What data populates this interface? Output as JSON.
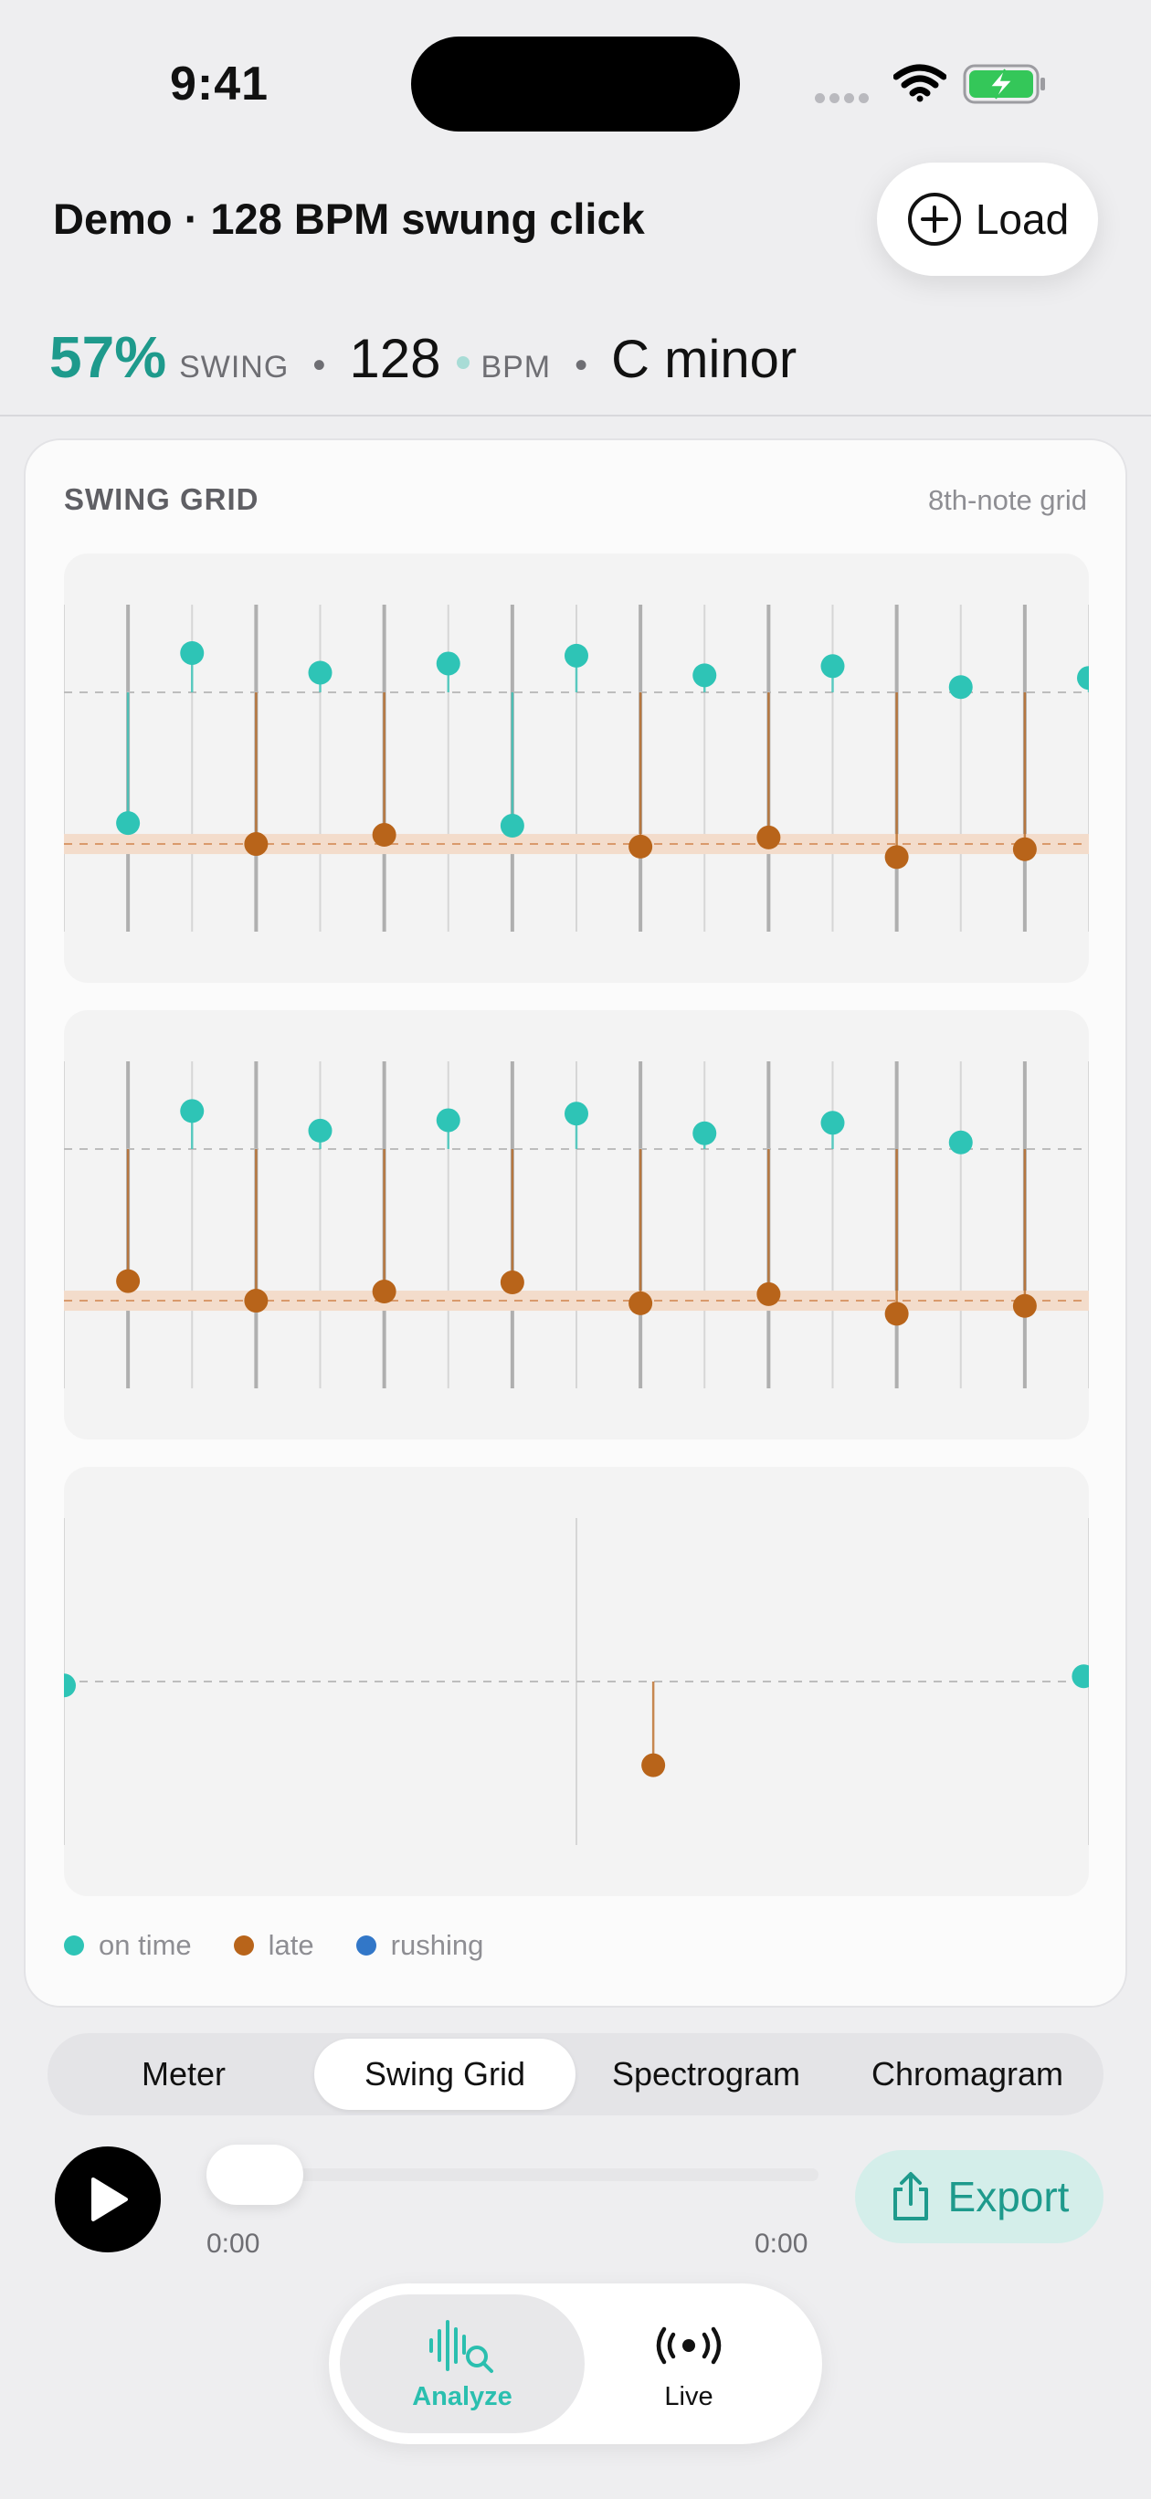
{
  "status_bar": {
    "time": "9:41",
    "icons": [
      "signal-dots-icon",
      "wifi-icon",
      "battery-charging-icon"
    ]
  },
  "header": {
    "title": "Demo · 128 BPM swung click",
    "load_label": "Load",
    "load_icon": "plus-circle-icon"
  },
  "stats": {
    "swing_value": "57%",
    "swing_label": "SWING",
    "separator": "•",
    "bpm_value": "128",
    "bpm_label": "BPM",
    "key": "C minor"
  },
  "card": {
    "title": "SWING GRID",
    "subtitle": "8th-note grid",
    "legend": [
      {
        "label": "on time",
        "color": "#2EC4B6"
      },
      {
        "label": "late",
        "color": "#B8641A"
      },
      {
        "label": "rushing",
        "color": "#3277C8"
      }
    ]
  },
  "colors": {
    "accent": "#1E9A8C",
    "on_time": "#2EC4B6",
    "late": "#B8641A",
    "rushing": "#3277C8"
  },
  "chart_data": [
    {
      "type": "scatter",
      "title": "",
      "grid": true,
      "x_range": [
        0,
        16
      ],
      "y_range": [
        -1.25,
        1.25
      ],
      "reference_lines": {
        "on_beat": 0.58,
        "swung_offbeat": -0.58
      },
      "points": [
        {
          "x": 1,
          "y": -0.42,
          "status": "on time"
        },
        {
          "x": 2,
          "y": 0.88,
          "status": "on time"
        },
        {
          "x": 3,
          "y": -0.58,
          "status": "late"
        },
        {
          "x": 4,
          "y": 0.73,
          "status": "on time"
        },
        {
          "x": 5,
          "y": -0.51,
          "status": "late"
        },
        {
          "x": 6,
          "y": 0.8,
          "status": "on time"
        },
        {
          "x": 7,
          "y": -0.44,
          "status": "on time"
        },
        {
          "x": 8,
          "y": 0.86,
          "status": "on time"
        },
        {
          "x": 9,
          "y": -0.6,
          "status": "late"
        },
        {
          "x": 10,
          "y": 0.71,
          "status": "on time"
        },
        {
          "x": 11,
          "y": -0.53,
          "status": "late"
        },
        {
          "x": 12,
          "y": 0.78,
          "status": "on time"
        },
        {
          "x": 13,
          "y": -0.68,
          "status": "late"
        },
        {
          "x": 14,
          "y": 0.62,
          "status": "on time"
        },
        {
          "x": 15,
          "y": -0.62,
          "status": "late"
        },
        {
          "x": 16,
          "y": 0.69,
          "status": "on time"
        }
      ]
    },
    {
      "type": "scatter",
      "title": "",
      "grid": true,
      "x_range": [
        0,
        16
      ],
      "y_range": [
        -1.25,
        1.25
      ],
      "reference_lines": {
        "on_beat": 0.58,
        "swung_offbeat": -0.58
      },
      "points": [
        {
          "x": 1,
          "y": -0.43,
          "status": "late"
        },
        {
          "x": 2,
          "y": 0.87,
          "status": "on time"
        },
        {
          "x": 3,
          "y": -0.58,
          "status": "late"
        },
        {
          "x": 4,
          "y": 0.72,
          "status": "on time"
        },
        {
          "x": 5,
          "y": -0.51,
          "status": "late"
        },
        {
          "x": 6,
          "y": 0.8,
          "status": "on time"
        },
        {
          "x": 7,
          "y": -0.44,
          "status": "late"
        },
        {
          "x": 8,
          "y": 0.85,
          "status": "on time"
        },
        {
          "x": 9,
          "y": -0.6,
          "status": "late"
        },
        {
          "x": 10,
          "y": 0.7,
          "status": "on time"
        },
        {
          "x": 11,
          "y": -0.53,
          "status": "late"
        },
        {
          "x": 12,
          "y": 0.78,
          "status": "on time"
        },
        {
          "x": 13,
          "y": -0.68,
          "status": "late"
        },
        {
          "x": 14,
          "y": 0.63,
          "status": "on time"
        },
        {
          "x": 15,
          "y": -0.62,
          "status": "late"
        }
      ]
    },
    {
      "type": "scatter",
      "title": "",
      "grid": true,
      "x_range": [
        0,
        2
      ],
      "y_range": [
        -1.25,
        1.25
      ],
      "reference_lines": {
        "on_beat": 0.0
      },
      "points": [
        {
          "x": 0.0,
          "y": -0.03,
          "status": "on time"
        },
        {
          "x": 1.15,
          "y": -0.64,
          "status": "late"
        },
        {
          "x": 1.99,
          "y": 0.04,
          "status": "on time"
        }
      ]
    }
  ],
  "view_tabs": {
    "items": [
      "Meter",
      "Swing Grid",
      "Spectrogram",
      "Chromagram"
    ],
    "selected": "Swing Grid"
  },
  "player": {
    "current_time": "0:00",
    "duration": "0:00",
    "progress": 0.0,
    "export_label": "Export",
    "play_icon": "play-icon",
    "export_icon": "share-icon"
  },
  "tab_bar": {
    "items": [
      {
        "label": "Analyze",
        "icon": "waveform-search-icon"
      },
      {
        "label": "Live",
        "icon": "broadcast-icon"
      }
    ],
    "selected": "Analyze"
  }
}
